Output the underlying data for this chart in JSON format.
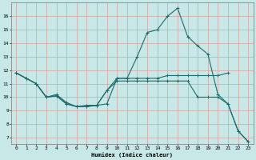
{
  "background_color": "#c8e8e8",
  "grid_color": "#d4a0a0",
  "line_color": "#1a6b6b",
  "xlabel": "Humidex (Indice chaleur)",
  "x_ticks": [
    0,
    1,
    2,
    3,
    4,
    5,
    6,
    7,
    8,
    9,
    10,
    11,
    12,
    13,
    14,
    15,
    16,
    17,
    18,
    19,
    20,
    21,
    22,
    23
  ],
  "ylim": [
    6.5,
    17.0
  ],
  "y_ticks": [
    7,
    8,
    9,
    10,
    11,
    12,
    13,
    14,
    15,
    16
  ],
  "series_spike": [
    11.8,
    11.4,
    11.0,
    10.0,
    10.1,
    9.5,
    9.3,
    9.3,
    9.4,
    10.5,
    11.4,
    11.4,
    13.0,
    14.8,
    15.0,
    16.0,
    16.6,
    14.5,
    13.8,
    13.2,
    10.2,
    9.5,
    7.5,
    6.7
  ],
  "series_flat": [
    11.8,
    11.4,
    11.0,
    10.0,
    10.1,
    9.5,
    9.3,
    9.3,
    9.4,
    9.5,
    11.4,
    11.4,
    11.4,
    11.4,
    11.4,
    11.6,
    11.6,
    11.6,
    11.6,
    11.6,
    11.6,
    11.8,
    null,
    null
  ],
  "series_mid": [
    11.8,
    11.4,
    11.0,
    10.0,
    10.2,
    9.6,
    9.3,
    9.4,
    9.4,
    10.5,
    11.2,
    11.2,
    11.2,
    11.2,
    11.2,
    11.2,
    11.2,
    11.2,
    10.0,
    10.0,
    10.0,
    9.5,
    7.5,
    6.7
  ],
  "series_diag": [
    11.8,
    null,
    null,
    null,
    null,
    null,
    null,
    null,
    null,
    null,
    null,
    null,
    null,
    null,
    null,
    null,
    null,
    null,
    null,
    null,
    null,
    null,
    null,
    6.7
  ]
}
